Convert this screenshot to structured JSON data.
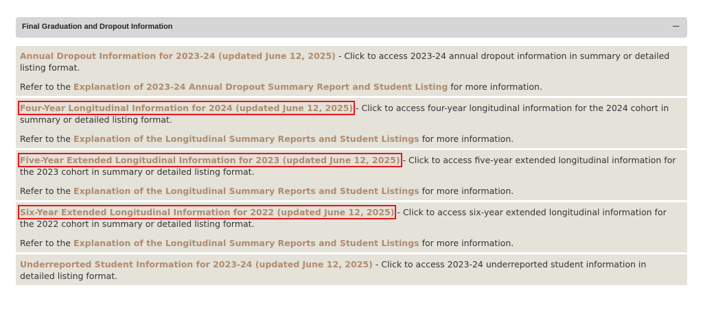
{
  "header": {
    "title": "Final Graduation and Dropout Information",
    "toggle": "−"
  },
  "sections": [
    {
      "item_link": "Annual Dropout Information for 2023-24 (updated June 12, 2025)",
      "item_desc": " - Click to access 2023-24 annual dropout information in summary or detailed listing format.",
      "refer_prefix": "Refer to the ",
      "refer_link": "Explanation of 2023-24 Annual Dropout Summary Report and Student Listing",
      "refer_suffix": " for more information."
    },
    {
      "item_link": "Four-Year Longitudinal Information for 2024 (updated June 12, 2025)",
      "item_desc": " - Click to access four-year longitudinal information for the 2024 cohort in summary or detailed listing format.",
      "refer_prefix": "Refer to the ",
      "refer_link": "Explanation of the Longitudinal Summary Reports and Student Listings",
      "refer_suffix": " for more information."
    },
    {
      "item_link": "Five-Year Extended Longitudinal Information for 2023 (updated June 12, 2025)",
      "item_desc": " - Click to access five-year extended longitudinal information for the 2023 cohort in summary or detailed listing format.",
      "refer_prefix": "Refer to the ",
      "refer_link": "Explanation of the Longitudinal Summary Reports and Student Listings",
      "refer_suffix": " for more information."
    },
    {
      "item_link": "Six-Year Extended Longitudinal Information for 2022 (updated June 12, 2025)",
      "item_desc": " - Click to access six-year extended longitudinal information for the 2022 cohort in summary or detailed listing format.",
      "refer_prefix": "Refer to the ",
      "refer_link": "Explanation of the Longitudinal Summary Reports and Student Listings",
      "refer_suffix": " for more information."
    },
    {
      "item_link": "Underreported Student Information for 2023-24 (updated June 12, 2025)",
      "item_desc": " - Click to access 2023-24 underreported student information in detailed listing format."
    }
  ],
  "colors": {
    "link": "#b08b6e",
    "section_bg": "#e4e2d9",
    "header_bg": "#d6d6d6",
    "highlight": "#e8161d"
  }
}
